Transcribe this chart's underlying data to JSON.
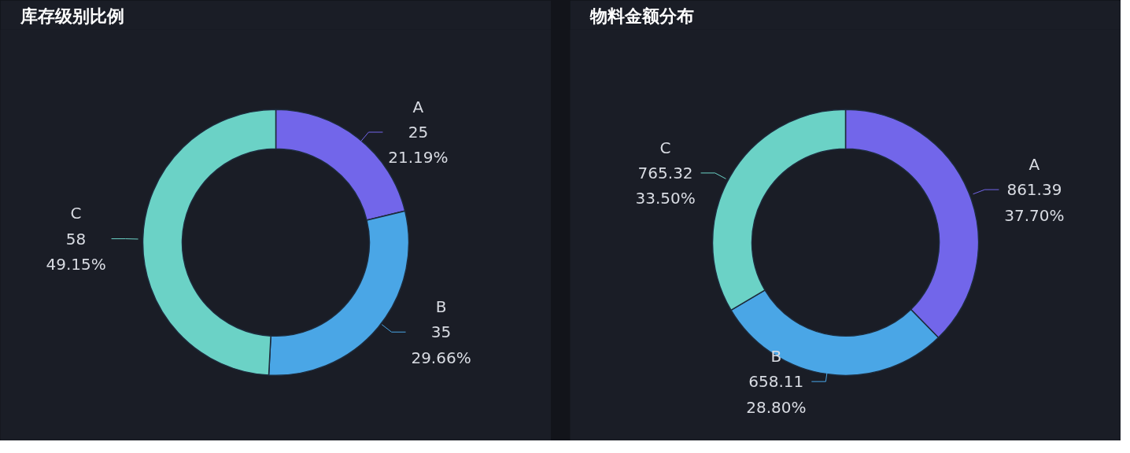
{
  "chart_data": [
    {
      "type": "donut",
      "title": "库存级别比例",
      "categories": [
        "A",
        "B",
        "C"
      ],
      "values": [
        25,
        35,
        58
      ],
      "colors": [
        "#7266ea",
        "#4aa6e6",
        "#6bd2c6"
      ],
      "value_labels": [
        "25\n21.19%",
        "35\n29.66%",
        "58\n49.15%"
      ]
    },
    {
      "type": "donut",
      "title": "物料金额分布",
      "categories": [
        "A",
        "B",
        "C"
      ],
      "values": [
        861.39,
        658.11,
        765.32
      ],
      "colors": [
        "#7266ea",
        "#4aa6e6",
        "#6bd2c6"
      ],
      "value_labels": [
        "861.39\n37.70%",
        "658.11\n28.80%",
        "765.32\n33.50%"
      ]
    }
  ]
}
